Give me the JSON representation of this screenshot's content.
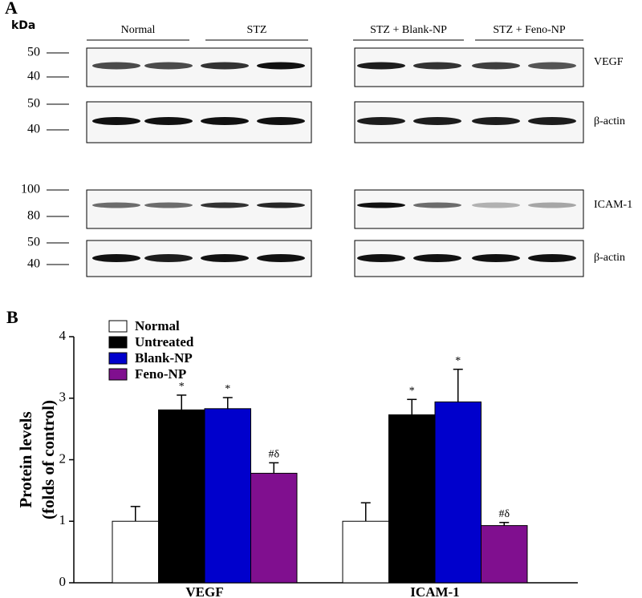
{
  "panel_a": {
    "label": "A",
    "unit": "kDa",
    "groups": [
      "Normal",
      "STZ",
      "STZ + Blank-NP",
      "STZ + Feno-NP"
    ],
    "rows": [
      {
        "markers": [
          "50",
          "40"
        ],
        "protein": "VEGF"
      },
      {
        "markers": [
          "50",
          "40"
        ],
        "protein": "β-actin"
      },
      {
        "markers": [
          "100",
          "80"
        ],
        "protein": "ICAM-1"
      },
      {
        "markers": [
          "50",
          "40"
        ],
        "protein": "β-actin"
      }
    ]
  },
  "chart_data": {
    "type": "bar",
    "panel_label": "B",
    "ylabel": [
      "Protein levels",
      "(folds of control)"
    ],
    "categories": [
      "VEGF",
      "ICAM-1"
    ],
    "series": [
      {
        "name": "Normal",
        "color": "#ffffff",
        "values": [
          1.0,
          1.0
        ],
        "errors": [
          0.24,
          0.3
        ]
      },
      {
        "name": "Untreated",
        "color": "#000000",
        "values": [
          2.81,
          2.73
        ],
        "errors": [
          0.24,
          0.25
        ],
        "annotations": [
          "*",
          "*"
        ]
      },
      {
        "name": "Blank-NP",
        "color": "#0000cc",
        "values": [
          2.83,
          2.94
        ],
        "errors": [
          0.18,
          0.53
        ],
        "annotations": [
          "*",
          "*"
        ]
      },
      {
        "name": "Feno-NP",
        "color": "#800f8f",
        "values": [
          1.78,
          0.93
        ],
        "errors": [
          0.17,
          0.05
        ],
        "annotations": [
          "#δ",
          "#δ"
        ]
      }
    ],
    "ylim": [
      0,
      4
    ],
    "yticks": [
      0,
      1,
      2,
      3,
      4
    ],
    "legend": "top-left"
  }
}
